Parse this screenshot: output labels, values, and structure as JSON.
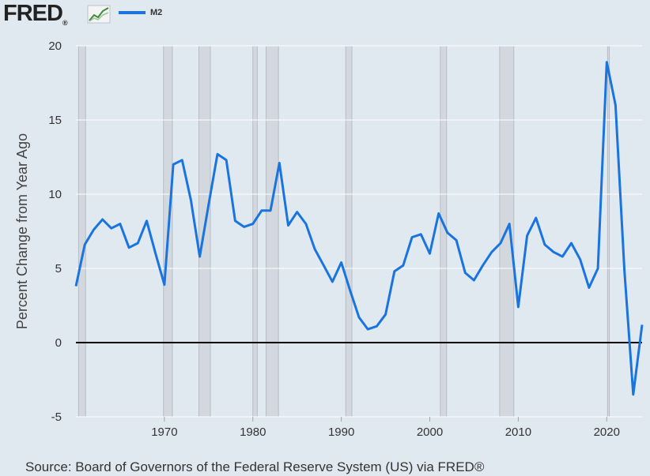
{
  "logo": {
    "text": "FRED",
    "registered_mark": "®",
    "icon": "line-chart-icon"
  },
  "colors": {
    "series": "#1a74e0",
    "background": "#e1e9f0",
    "recession": "#d3d8de",
    "zero_line": "#000000",
    "grid": "#ffffff"
  },
  "source": "Source: Board of Governors of the Federal Reserve System (US) via FRED®",
  "chart_data": {
    "type": "line",
    "title": "",
    "xlabel": "",
    "ylabel": "Percent Change from Year Ago",
    "xlim": [
      1960,
      2024
    ],
    "ylim": [
      -5,
      20
    ],
    "x_ticks": [
      "1970",
      "1980",
      "1990",
      "2000",
      "2010",
      "2020"
    ],
    "y_ticks": [
      "-5",
      "0",
      "5",
      "10",
      "15",
      "20"
    ],
    "grid": true,
    "legend": "top-left",
    "zero_line": 0,
    "recessions": [
      [
        1960.3,
        1961.1
      ],
      [
        1969.9,
        1970.9
      ],
      [
        1973.9,
        1975.2
      ],
      [
        1980.0,
        1980.5
      ],
      [
        1981.5,
        1982.9
      ],
      [
        1990.5,
        1991.2
      ],
      [
        2001.2,
        2001.9
      ],
      [
        2007.9,
        2009.5
      ],
      [
        2020.1,
        2020.3
      ]
    ],
    "series": [
      {
        "name": "M2",
        "x": [
          1960,
          1961,
          1962,
          1963,
          1964,
          1965,
          1966,
          1967,
          1968,
          1969,
          1970,
          1971,
          1972,
          1973,
          1974,
          1975,
          1976,
          1977,
          1978,
          1979,
          1980,
          1981,
          1982,
          1983,
          1984,
          1985,
          1986,
          1987,
          1988,
          1989,
          1990,
          1991,
          1992,
          1993,
          1994,
          1995,
          1996,
          1997,
          1998,
          1999,
          2000,
          2001,
          2002,
          2003,
          2004,
          2005,
          2006,
          2007,
          2008,
          2009,
          2010,
          2011,
          2012,
          2013,
          2014,
          2015,
          2016,
          2017,
          2018,
          2019,
          2020,
          2021,
          2022,
          2023,
          2024
        ],
        "values": [
          3.8,
          6.6,
          7.6,
          8.3,
          7.7,
          8.0,
          6.4,
          6.7,
          8.2,
          6.0,
          3.9,
          12.0,
          12.3,
          9.6,
          5.8,
          9.3,
          12.7,
          12.3,
          8.2,
          7.8,
          8.0,
          8.9,
          8.9,
          12.1,
          7.9,
          8.8,
          8.0,
          6.3,
          5.2,
          4.1,
          5.4,
          3.5,
          1.7,
          0.9,
          1.1,
          1.9,
          4.8,
          5.2,
          7.1,
          7.3,
          6.0,
          8.7,
          7.4,
          6.9,
          4.7,
          4.2,
          5.2,
          6.1,
          6.7,
          8.0,
          2.4,
          7.2,
          8.4,
          6.6,
          6.1,
          5.8,
          6.7,
          5.6,
          3.7,
          5.0,
          18.9,
          16.0,
          4.9,
          -3.5,
          1.2
        ]
      }
    ]
  }
}
